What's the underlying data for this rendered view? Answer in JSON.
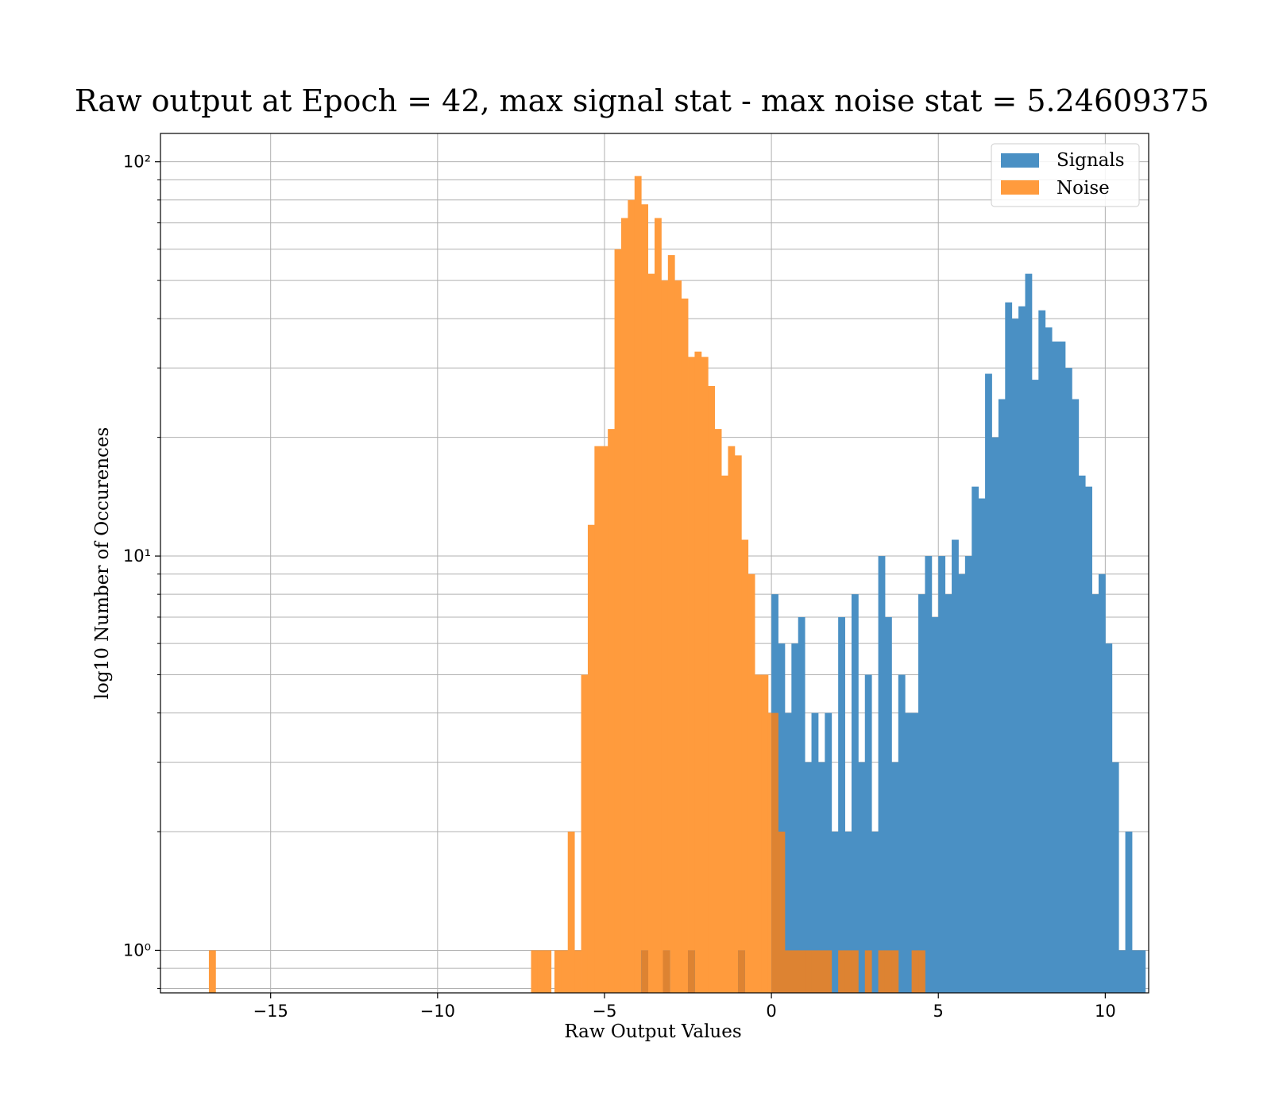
{
  "chart_data": {
    "type": "histogram",
    "title": "Raw output at Epoch = 42, max signal stat - max noise stat = 5.24609375",
    "xlabel": "Raw Output Values",
    "ylabel": "log10 Number of Occurences",
    "xlim": [
      -18.3,
      11.3
    ],
    "ylim": [
      0.78,
      118
    ],
    "yscale": "log",
    "grid": true,
    "legend_position": "top-right",
    "x_ticks": [
      -15,
      -10,
      -5,
      0,
      5,
      10
    ],
    "x_tick_labels": [
      "−15",
      "−10",
      "−5",
      "0",
      "5",
      "10"
    ],
    "y_ticks": [
      1,
      10,
      100
    ],
    "y_tick_labels": [
      "10⁰",
      "10¹",
      "10²"
    ],
    "colors": {
      "signals": "#4a90c4",
      "noise": "#ff9b3d",
      "overlap": "#dd8332"
    },
    "legend": [
      "Signals",
      "Noise"
    ],
    "series": [
      {
        "name": "Signals",
        "color": "#4a90c4",
        "bin_width": 0.21,
        "bins": [
          [
            -3.9,
            1
          ],
          [
            -3.25,
            1
          ],
          [
            -2.5,
            1
          ],
          [
            -1.0,
            1
          ],
          [
            0.0,
            8
          ],
          [
            0.2,
            6
          ],
          [
            0.4,
            4
          ],
          [
            0.6,
            6
          ],
          [
            0.8,
            7
          ],
          [
            1.0,
            3
          ],
          [
            1.2,
            4
          ],
          [
            1.4,
            3
          ],
          [
            1.6,
            4
          ],
          [
            1.8,
            2
          ],
          [
            2.0,
            7
          ],
          [
            2.2,
            2
          ],
          [
            2.4,
            8
          ],
          [
            2.6,
            3
          ],
          [
            2.8,
            5
          ],
          [
            3.0,
            2
          ],
          [
            3.2,
            10
          ],
          [
            3.4,
            7
          ],
          [
            3.6,
            3
          ],
          [
            3.8,
            5
          ],
          [
            4.0,
            4
          ],
          [
            4.2,
            4
          ],
          [
            4.4,
            8
          ],
          [
            4.6,
            10
          ],
          [
            4.8,
            7
          ],
          [
            5.0,
            10
          ],
          [
            5.2,
            8
          ],
          [
            5.4,
            11
          ],
          [
            5.6,
            9
          ],
          [
            5.8,
            10
          ],
          [
            6.0,
            15
          ],
          [
            6.2,
            14
          ],
          [
            6.4,
            29
          ],
          [
            6.6,
            20
          ],
          [
            6.8,
            25
          ],
          [
            7.0,
            44
          ],
          [
            7.2,
            40
          ],
          [
            7.4,
            43
          ],
          [
            7.6,
            52
          ],
          [
            7.8,
            28
          ],
          [
            8.0,
            42
          ],
          [
            8.2,
            38
          ],
          [
            8.4,
            35
          ],
          [
            8.6,
            35
          ],
          [
            8.8,
            30
          ],
          [
            9.0,
            25
          ],
          [
            9.2,
            16
          ],
          [
            9.4,
            15
          ],
          [
            9.6,
            8
          ],
          [
            9.8,
            9
          ],
          [
            10.0,
            6
          ],
          [
            10.2,
            3
          ],
          [
            10.4,
            1
          ],
          [
            10.6,
            2
          ],
          [
            10.8,
            1
          ],
          [
            11.0,
            1
          ]
        ]
      },
      {
        "name": "Noise",
        "color": "#ff9b3d",
        "bin_width": 0.21,
        "bins": [
          [
            -16.85,
            1
          ],
          [
            -7.2,
            1
          ],
          [
            -7.0,
            1
          ],
          [
            -6.8,
            1
          ],
          [
            -6.5,
            1
          ],
          [
            -6.3,
            1
          ],
          [
            -6.1,
            2
          ],
          [
            -5.9,
            1
          ],
          [
            -5.7,
            5
          ],
          [
            -5.5,
            12
          ],
          [
            -5.3,
            19
          ],
          [
            -5.1,
            19
          ],
          [
            -4.9,
            21
          ],
          [
            -4.7,
            60
          ],
          [
            -4.5,
            72
          ],
          [
            -4.3,
            80
          ],
          [
            -4.1,
            92
          ],
          [
            -3.9,
            78
          ],
          [
            -3.7,
            52
          ],
          [
            -3.5,
            72
          ],
          [
            -3.3,
            50
          ],
          [
            -3.1,
            58
          ],
          [
            -2.9,
            50
          ],
          [
            -2.7,
            45
          ],
          [
            -2.5,
            32
          ],
          [
            -2.3,
            33
          ],
          [
            -2.1,
            32
          ],
          [
            -1.9,
            27
          ],
          [
            -1.7,
            21
          ],
          [
            -1.5,
            16
          ],
          [
            -1.3,
            19
          ],
          [
            -1.1,
            18
          ],
          [
            -0.9,
            11
          ],
          [
            -0.7,
            9
          ],
          [
            -0.5,
            5
          ],
          [
            -0.3,
            5
          ],
          [
            -0.1,
            4
          ],
          [
            0.1,
            2
          ],
          [
            0.3,
            1
          ],
          [
            0.5,
            1
          ],
          [
            0.7,
            1
          ],
          [
            1.0,
            1
          ],
          [
            1.3,
            1
          ],
          [
            1.6,
            1
          ],
          [
            2.0,
            1
          ],
          [
            2.2,
            1
          ],
          [
            2.4,
            1
          ],
          [
            2.8,
            1
          ],
          [
            3.2,
            1
          ],
          [
            3.5,
            1
          ],
          [
            4.2,
            1
          ],
          [
            4.4,
            1
          ]
        ]
      }
    ]
  }
}
